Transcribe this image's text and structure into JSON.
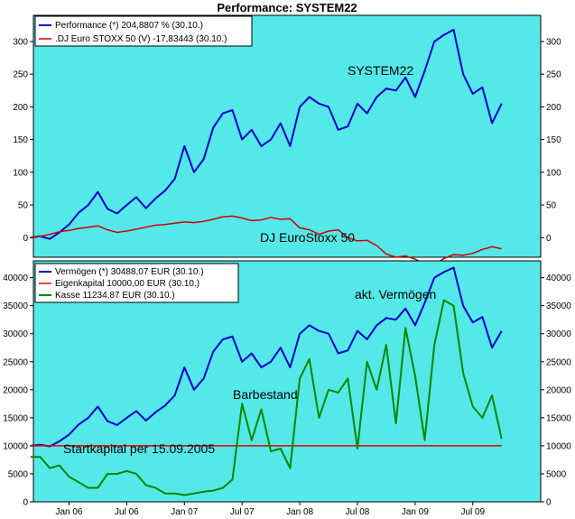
{
  "chart_data": {
    "title": "Performance: SYSTEM22",
    "colors": {
      "background": "#55e8e8",
      "blue": "#0000cc",
      "red": "#cc0000",
      "green": "#008800",
      "hline": "#dd0000"
    },
    "x_ticks": [
      "Jan 06",
      "Jul 06",
      "Jan 07",
      "Jul 07",
      "Jan 08",
      "Jul 08",
      "Jan 09",
      "Jul 09"
    ],
    "panels": [
      {
        "type": "line",
        "ylim": [
          -30,
          340
        ],
        "yticks": [
          0,
          50,
          100,
          150,
          200,
          250,
          300
        ],
        "grid": false,
        "legend_position": "top-left",
        "annotations": [
          "SYSTEM22",
          "DJ EuroStoxx 50"
        ],
        "series": [
          {
            "name": "Performance (*) 204,8807 % (30.10.)",
            "color": "blue",
            "points": [
              [
                "Sep 05",
                0
              ],
              [
                "Oct 05",
                2
              ],
              [
                "Nov 05",
                -2
              ],
              [
                "Dec 05",
                8
              ],
              [
                "Jan 06",
                20
              ],
              [
                "Feb 06",
                38
              ],
              [
                "Mar 06",
                50
              ],
              [
                "Apr 06",
                70
              ],
              [
                "May 06",
                44
              ],
              [
                "Jun 06",
                37
              ],
              [
                "Jul 06",
                50
              ],
              [
                "Aug 06",
                62
              ],
              [
                "Sep 06",
                45
              ],
              [
                "Oct 06",
                60
              ],
              [
                "Nov 06",
                72
              ],
              [
                "Dec 06",
                90
              ],
              [
                "Jan 07",
                140
              ],
              [
                "Feb 07",
                100
              ],
              [
                "Mar 07",
                120
              ],
              [
                "Apr 07",
                168
              ],
              [
                "May 07",
                190
              ],
              [
                "Jun 07",
                195
              ],
              [
                "Jul 07",
                150
              ],
              [
                "Aug 07",
                165
              ],
              [
                "Sep 07",
                140
              ],
              [
                "Oct 07",
                150
              ],
              [
                "Nov 07",
                175
              ],
              [
                "Dec 07",
                140
              ],
              [
                "Jan 08",
                200
              ],
              [
                "Feb 08",
                215
              ],
              [
                "Mar 08",
                205
              ],
              [
                "Apr 08",
                200
              ],
              [
                "May 08",
                165
              ],
              [
                "Jun 08",
                170
              ],
              [
                "Jul 08",
                205
              ],
              [
                "Aug 08",
                190
              ],
              [
                "Sep 08",
                215
              ],
              [
                "Oct 08",
                228
              ],
              [
                "Nov 08",
                225
              ],
              [
                "Dec 08",
                245
              ],
              [
                "Jan 09",
                215
              ],
              [
                "Feb 09",
                255
              ],
              [
                "Mar 09",
                300
              ],
              [
                "Apr 09",
                310
              ],
              [
                "May 09",
                318
              ],
              [
                "Jun 09",
                250
              ],
              [
                "Jul 09",
                220
              ],
              [
                "Aug 09",
                230
              ],
              [
                "Sep 09",
                175
              ],
              [
                "Oct 09",
                205
              ]
            ]
          },
          {
            "name": ".DJ Euro STOXX 50 (V) -17,83443 (30.10.)",
            "color": "red",
            "points": [
              [
                "Sep 05",
                0
              ],
              [
                "Oct 05",
                2
              ],
              [
                "Nov 05",
                5
              ],
              [
                "Dec 05",
                9
              ],
              [
                "Jan 06",
                11
              ],
              [
                "Feb 06",
                14
              ],
              [
                "Mar 06",
                16
              ],
              [
                "Apr 06",
                18
              ],
              [
                "May 06",
                12
              ],
              [
                "Jun 06",
                8
              ],
              [
                "Jul 06",
                10
              ],
              [
                "Aug 06",
                13
              ],
              [
                "Sep 06",
                16
              ],
              [
                "Oct 06",
                19
              ],
              [
                "Nov 06",
                20
              ],
              [
                "Dec 06",
                22
              ],
              [
                "Jan 07",
                24
              ],
              [
                "Feb 07",
                23
              ],
              [
                "Mar 07",
                25
              ],
              [
                "Apr 07",
                28
              ],
              [
                "May 07",
                32
              ],
              [
                "Jun 07",
                33
              ],
              [
                "Jul 07",
                30
              ],
              [
                "Aug 07",
                26
              ],
              [
                "Sep 07",
                27
              ],
              [
                "Oct 07",
                31
              ],
              [
                "Nov 07",
                28
              ],
              [
                "Dec 07",
                29
              ],
              [
                "Jan 08",
                15
              ],
              [
                "Feb 08",
                12
              ],
              [
                "Mar 08",
                5
              ],
              [
                "Apr 08",
                10
              ],
              [
                "May 08",
                12
              ],
              [
                "Jun 08",
                0
              ],
              [
                "Jul 08",
                -5
              ],
              [
                "Aug 08",
                -4
              ],
              [
                "Sep 08",
                -12
              ],
              [
                "Oct 08",
                -25
              ],
              [
                "Nov 08",
                -30
              ],
              [
                "Dec 08",
                -28
              ],
              [
                "Jan 09",
                -33
              ],
              [
                "Feb 09",
                -40
              ],
              [
                "Mar 09",
                -42
              ],
              [
                "Apr 09",
                -32
              ],
              [
                "May 09",
                -26
              ],
              [
                "Jun 09",
                -27
              ],
              [
                "Jul 09",
                -24
              ],
              [
                "Aug 09",
                -18
              ],
              [
                "Sep 09",
                -14
              ],
              [
                "Oct 09",
                -17
              ]
            ]
          }
        ]
      },
      {
        "type": "line",
        "ylim": [
          0,
          43000
        ],
        "yticks": [
          0,
          5000,
          10000,
          15000,
          20000,
          25000,
          30000,
          35000,
          40000
        ],
        "grid": false,
        "legend_position": "top-left",
        "annotations": [
          "akt. Vermögen",
          "Barbestand",
          "Startkapital per 15.09.2005"
        ],
        "series": [
          {
            "name": "Vermögen (*) 30488,07 EUR (30.10.)",
            "color": "blue",
            "points": [
              [
                "Sep 05",
                10000
              ],
              [
                "Oct 05",
                10200
              ],
              [
                "Nov 05",
                9900
              ],
              [
                "Dec 05",
                10800
              ],
              [
                "Jan 06",
                12000
              ],
              [
                "Feb 06",
                13800
              ],
              [
                "Mar 06",
                15000
              ],
              [
                "Apr 06",
                17000
              ],
              [
                "May 06",
                14400
              ],
              [
                "Jun 06",
                13700
              ],
              [
                "Jul 06",
                15000
              ],
              [
                "Aug 06",
                16200
              ],
              [
                "Sep 06",
                14500
              ],
              [
                "Oct 06",
                16000
              ],
              [
                "Nov 06",
                17200
              ],
              [
                "Dec 06",
                19000
              ],
              [
                "Jan 07",
                24000
              ],
              [
                "Feb 07",
                20000
              ],
              [
                "Mar 07",
                22000
              ],
              [
                "Apr 07",
                26800
              ],
              [
                "May 07",
                29000
              ],
              [
                "Jun 07",
                29500
              ],
              [
                "Jul 07",
                25000
              ],
              [
                "Aug 07",
                26500
              ],
              [
                "Sep 07",
                24000
              ],
              [
                "Oct 07",
                25000
              ],
              [
                "Nov 07",
                27500
              ],
              [
                "Dec 07",
                24000
              ],
              [
                "Jan 08",
                30000
              ],
              [
                "Feb 08",
                31500
              ],
              [
                "Mar 08",
                30500
              ],
              [
                "Apr 08",
                30000
              ],
              [
                "May 08",
                26500
              ],
              [
                "Jun 08",
                27000
              ],
              [
                "Jul 08",
                30500
              ],
              [
                "Aug 08",
                29000
              ],
              [
                "Sep 08",
                31500
              ],
              [
                "Oct 08",
                32800
              ],
              [
                "Nov 08",
                32500
              ],
              [
                "Dec 08",
                34500
              ],
              [
                "Jan 09",
                31500
              ],
              [
                "Feb 09",
                35500
              ],
              [
                "Mar 09",
                40000
              ],
              [
                "Apr 09",
                41000
              ],
              [
                "May 09",
                41800
              ],
              [
                "Jun 09",
                35000
              ],
              [
                "Jul 09",
                32000
              ],
              [
                "Aug 09",
                33000
              ],
              [
                "Sep 09",
                27500
              ],
              [
                "Oct 09",
                30488
              ]
            ]
          },
          {
            "name": "Eigenkapital 10000,00 EUR (30.10.)",
            "color": "hline",
            "points": [
              [
                "Sep 05",
                10000
              ],
              [
                "Oct 09",
                10000
              ]
            ]
          },
          {
            "name": "Kasse 11234,87 EUR (30.10.)",
            "color": "green",
            "points": [
              [
                "Sep 05",
                8000
              ],
              [
                "Oct 05",
                8000
              ],
              [
                "Nov 05",
                6000
              ],
              [
                "Dec 05",
                6500
              ],
              [
                "Jan 06",
                4500
              ],
              [
                "Feb 06",
                3500
              ],
              [
                "Mar 06",
                2500
              ],
              [
                "Apr 06",
                2500
              ],
              [
                "May 06",
                5000
              ],
              [
                "Jun 06",
                5000
              ],
              [
                "Jul 06",
                5500
              ],
              [
                "Aug 06",
                5000
              ],
              [
                "Sep 06",
                3000
              ],
              [
                "Oct 06",
                2500
              ],
              [
                "Nov 06",
                1500
              ],
              [
                "Dec 06",
                1500
              ],
              [
                "Jan 07",
                1200
              ],
              [
                "Feb 07",
                1500
              ],
              [
                "Mar 07",
                1800
              ],
              [
                "Apr 07",
                2000
              ],
              [
                "May 07",
                2500
              ],
              [
                "Jun 07",
                4000
              ],
              [
                "Jul 07",
                17500
              ],
              [
                "Aug 07",
                11000
              ],
              [
                "Sep 07",
                16500
              ],
              [
                "Oct 07",
                9000
              ],
              [
                "Nov 07",
                9500
              ],
              [
                "Dec 07",
                6000
              ],
              [
                "Jan 08",
                22000
              ],
              [
                "Feb 08",
                25500
              ],
              [
                "Mar 08",
                15000
              ],
              [
                "Apr 08",
                20000
              ],
              [
                "May 08",
                19500
              ],
              [
                "Jun 08",
                22000
              ],
              [
                "Jul 08",
                9500
              ],
              [
                "Aug 08",
                25000
              ],
              [
                "Sep 08",
                20000
              ],
              [
                "Oct 08",
                28000
              ],
              [
                "Nov 08",
                14000
              ],
              [
                "Dec 08",
                31000
              ],
              [
                "Jan 09",
                22500
              ],
              [
                "Feb 09",
                11000
              ],
              [
                "Mar 09",
                28000
              ],
              [
                "Apr 09",
                36000
              ],
              [
                "May 09",
                35000
              ],
              [
                "Jun 09",
                23000
              ],
              [
                "Jul 09",
                17000
              ],
              [
                "Aug 09",
                15000
              ],
              [
                "Sep 09",
                19000
              ],
              [
                "Oct 09",
                11235
              ]
            ]
          }
        ]
      }
    ]
  }
}
